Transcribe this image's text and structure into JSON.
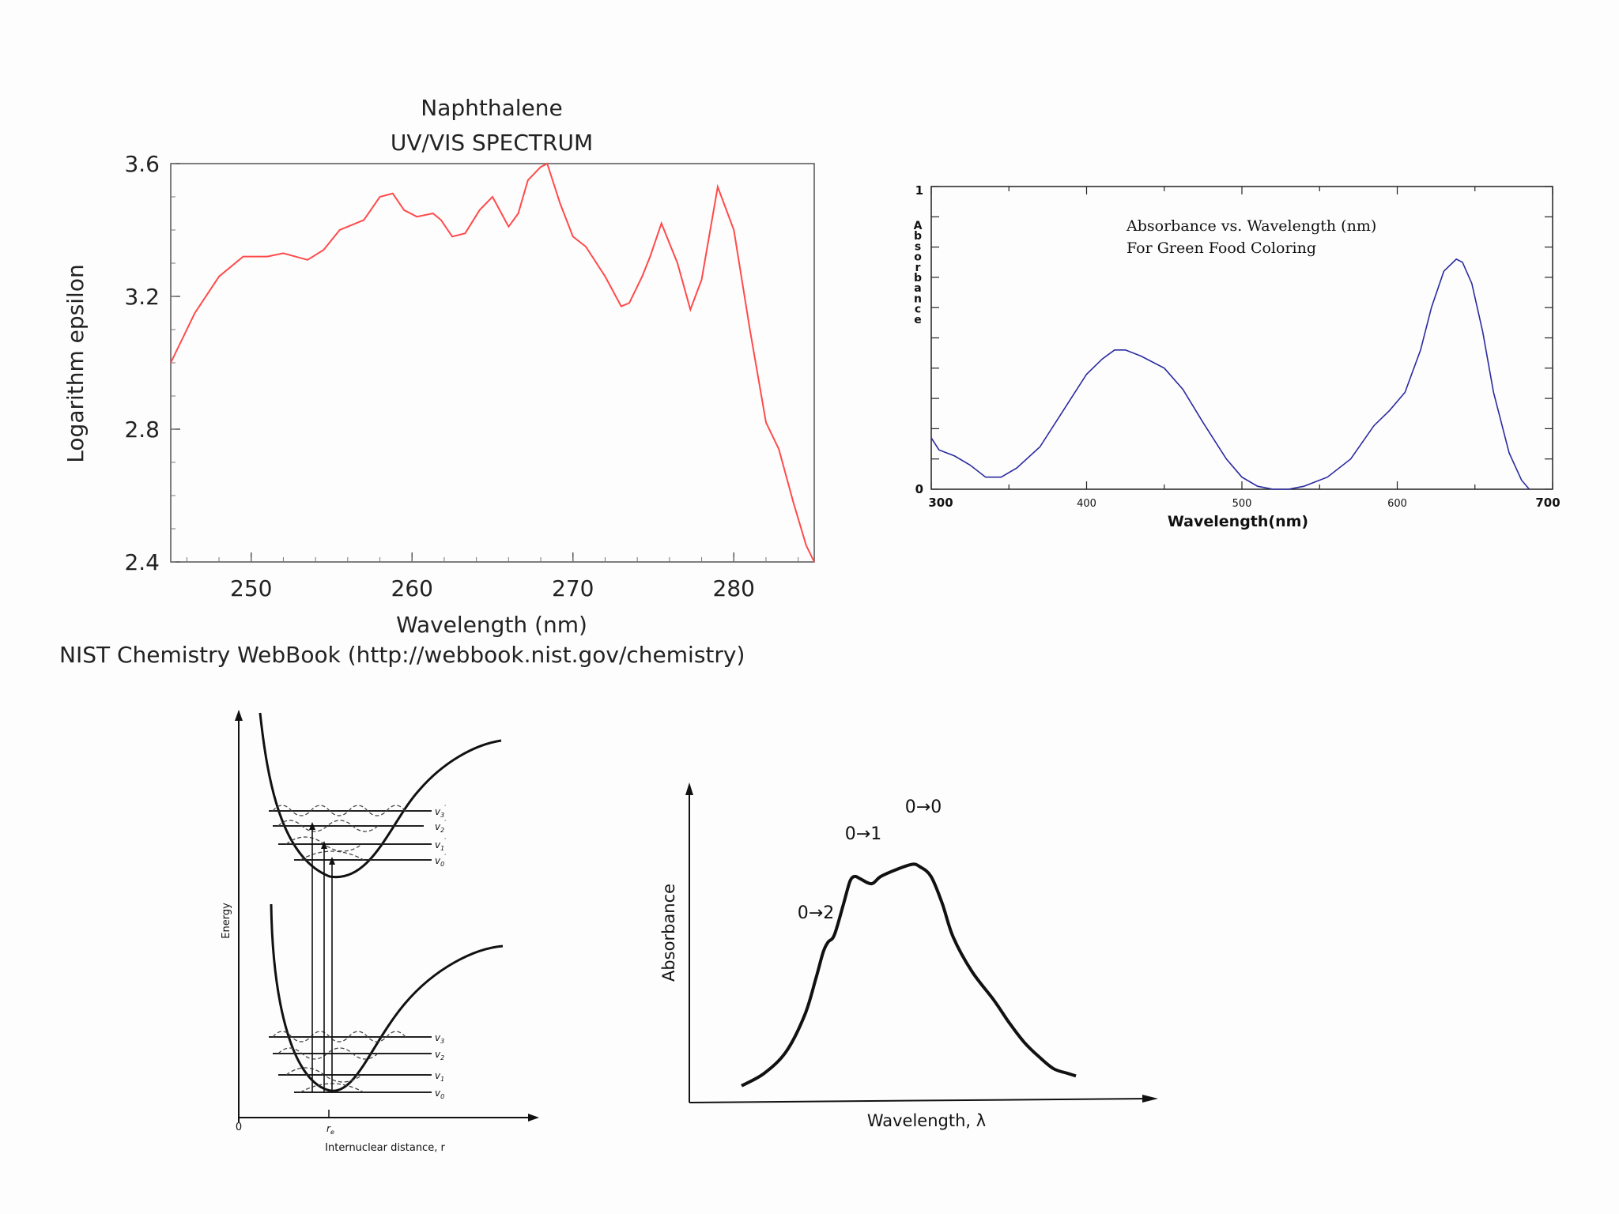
{
  "chart_data": [
    {
      "id": "naphthalene",
      "type": "line",
      "title_line1": "Naphthalene",
      "title_line2": "UV/VIS SPECTRUM",
      "xlabel": "Wavelength (nm)",
      "ylabel": "Logarithm epsilon",
      "source": "NIST Chemistry WebBook (http://webbook.nist.gov/chemistry)",
      "xlim": [
        245,
        285
      ],
      "ylim": [
        2.4,
        3.6
      ],
      "xticks": [
        "250",
        "260",
        "270",
        "280"
      ],
      "yticks": [
        "2.4",
        "2.8",
        "3.2",
        "3.6"
      ],
      "line_color": "#ff4a4a",
      "series": [
        {
          "name": "Naphthalene",
          "x": [
            245,
            246.5,
            248,
            249.5,
            251,
            252,
            253.5,
            254.5,
            255.5,
            257,
            258,
            258.8,
            259.5,
            260.3,
            261.3,
            261.8,
            262.5,
            263.3,
            264.2,
            265,
            266,
            266.6,
            267.2,
            268,
            268.4,
            269.2,
            270,
            270.8,
            272,
            273,
            273.5,
            274.3,
            274.8,
            275.5,
            276.5,
            277.3,
            278,
            279,
            280,
            281,
            282,
            282.8,
            283.7,
            284.5,
            285
          ],
          "y": [
            3.0,
            3.15,
            3.26,
            3.32,
            3.32,
            3.33,
            3.31,
            3.34,
            3.4,
            3.43,
            3.5,
            3.51,
            3.46,
            3.44,
            3.45,
            3.43,
            3.38,
            3.39,
            3.46,
            3.5,
            3.41,
            3.45,
            3.55,
            3.59,
            3.6,
            3.48,
            3.38,
            3.35,
            3.26,
            3.17,
            3.18,
            3.26,
            3.32,
            3.42,
            3.3,
            3.16,
            3.25,
            3.53,
            3.4,
            3.1,
            2.82,
            2.74,
            2.58,
            2.45,
            2.4
          ]
        }
      ]
    },
    {
      "id": "green-food-coloring",
      "type": "line",
      "title_line1": "Absorbance vs. Wavelength (nm)",
      "title_line2": "For Green Food Coloring",
      "xlabel": "Wavelength(nm)",
      "ylabel": "Absorbance",
      "xlim": [
        300,
        700
      ],
      "ylim": [
        0,
        1
      ],
      "xticks": [
        "300",
        "400",
        "500",
        "600",
        "700"
      ],
      "yticks": [
        "0",
        "1"
      ],
      "line_color": "#2a2aa0",
      "series": [
        {
          "name": "Green Food Coloring",
          "x": [
            300,
            305,
            315,
            325,
            335,
            345,
            355,
            370,
            385,
            400,
            410,
            418,
            425,
            435,
            450,
            462,
            475,
            490,
            500,
            510,
            520,
            530,
            540,
            555,
            570,
            585,
            595,
            605,
            615,
            622,
            630,
            638,
            642,
            648,
            655,
            662,
            672,
            680,
            685
          ],
          "y": [
            0.17,
            0.13,
            0.11,
            0.08,
            0.04,
            0.04,
            0.07,
            0.14,
            0.26,
            0.38,
            0.43,
            0.46,
            0.46,
            0.44,
            0.4,
            0.33,
            0.22,
            0.1,
            0.04,
            0.01,
            0.0,
            0.0,
            0.01,
            0.04,
            0.1,
            0.21,
            0.26,
            0.32,
            0.46,
            0.6,
            0.72,
            0.76,
            0.75,
            0.68,
            0.52,
            0.32,
            0.12,
            0.03,
            0.0
          ]
        }
      ]
    },
    {
      "id": "franck-condon",
      "type": "diagram",
      "ylabel": "Energy",
      "xlabel": "Internuclear distance, r",
      "origin_label": "0",
      "re_label": "r",
      "re_subscript": "e",
      "upper_levels": [
        {
          "label": "v",
          "sub": "3",
          "sup": "′"
        },
        {
          "label": "v",
          "sub": "2",
          "sup": "′"
        },
        {
          "label": "v",
          "sub": "1",
          "sup": "′"
        },
        {
          "label": "v",
          "sub": "0",
          "sup": "′"
        }
      ],
      "lower_levels": [
        {
          "label": "v",
          "sub": "3",
          "sup": ""
        },
        {
          "label": "v",
          "sub": "2",
          "sup": ""
        },
        {
          "label": "v",
          "sub": "1",
          "sup": ""
        },
        {
          "label": "v",
          "sub": "0",
          "sup": ""
        }
      ]
    },
    {
      "id": "vibronic-absorbance",
      "type": "line",
      "xlabel": "Wavelength, λ",
      "ylabel": "Absorbance",
      "annotations": [
        "0→0",
        "0→1",
        "0→2"
      ],
      "xlim": [
        0,
        100
      ],
      "ylim": [
        0,
        100
      ],
      "series": [
        {
          "name": "Absorbance band",
          "x": [
            0,
            6,
            12,
            17,
            20,
            22,
            23.3,
            25,
            27.5,
            29.2,
            30.5,
            32,
            35,
            37.5,
            42,
            46,
            48,
            51,
            54,
            57,
            62,
            68,
            72,
            76,
            80,
            84,
            88,
            90
          ],
          "y": [
            3,
            8,
            17,
            32,
            47,
            58,
            62,
            65,
            78,
            87,
            89,
            88,
            86,
            89,
            92,
            94,
            93,
            89,
            78,
            64,
            50,
            38,
            29,
            21,
            15,
            10,
            8,
            7
          ]
        }
      ]
    }
  ]
}
